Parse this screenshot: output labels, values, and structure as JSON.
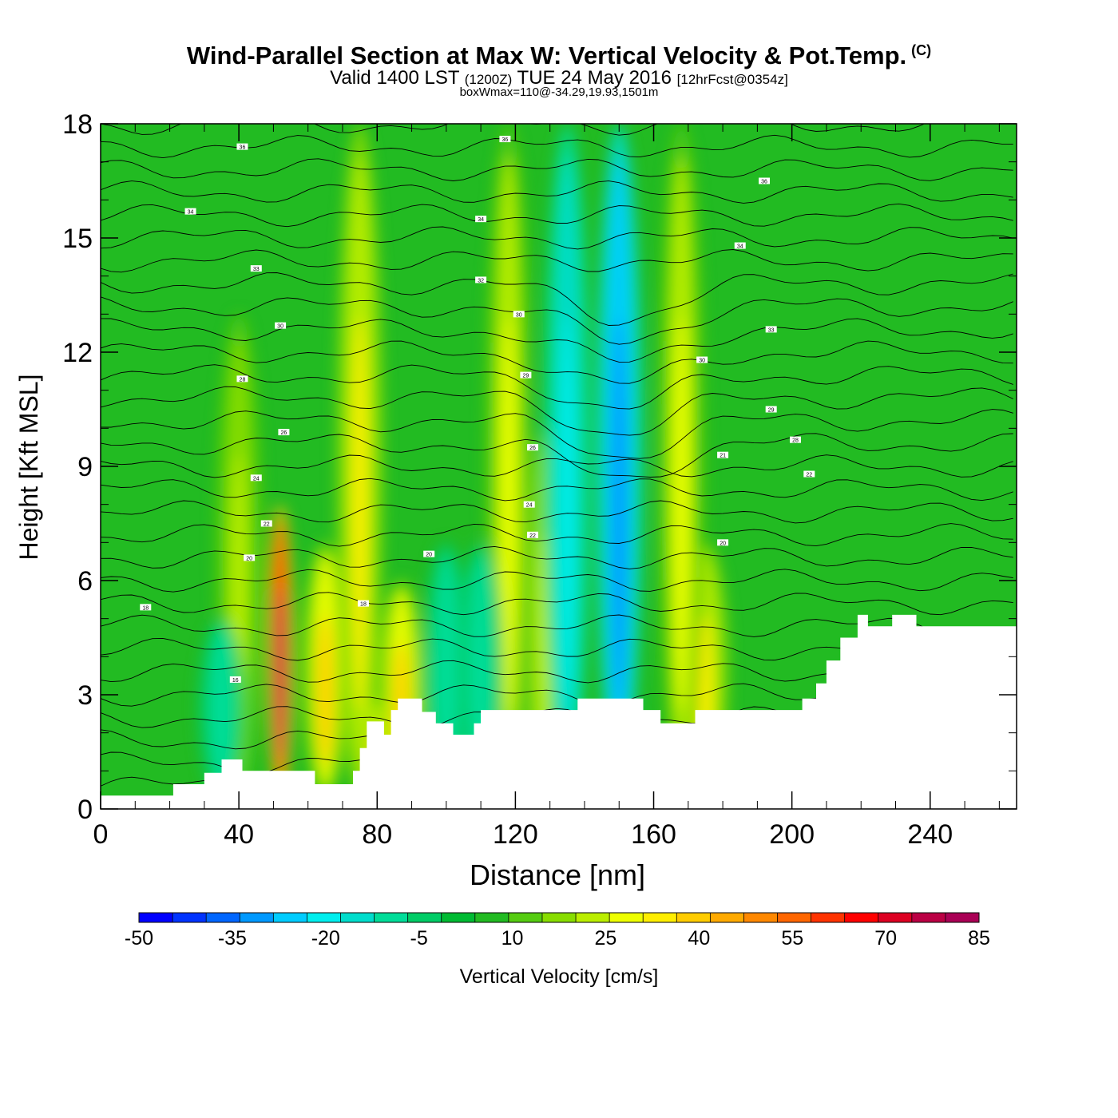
{
  "header": {
    "title": "Wind-Parallel Section at Max W: Vertical Velocity & Pot.Temp.",
    "copyright": "(C)",
    "valid_prefix": "Valid 1400 LST",
    "valid_utc": "(1200Z)",
    "valid_date": "TUE 24 May 2016",
    "forecast": "[12hrFcst@0354z]",
    "boxwmax": "boxWmax=110@-34.29,19.93,1501m"
  },
  "chart_data": {
    "type": "heatmap",
    "title": "Wind-Parallel Section at Max W: Vertical Velocity & Pot.Temp.",
    "xlabel": "Distance [nm]",
    "ylabel": "Height [Kft MSL]",
    "xlim": [
      0,
      265
    ],
    "ylim": [
      0,
      18
    ],
    "x_ticks": [
      "0",
      "40",
      "80",
      "120",
      "160",
      "200",
      "240"
    ],
    "y_ticks": [
      "0",
      "3",
      "6",
      "9",
      "12",
      "15",
      "18"
    ],
    "colorbar": {
      "label": "Vertical Velocity [cm/s]",
      "min": -50,
      "max": 85,
      "step": 5,
      "tick_labels": [
        "-50",
        "-35",
        "-20",
        "-5",
        "10",
        "25",
        "40",
        "55",
        "70",
        "85"
      ],
      "colors": [
        "#0000ff",
        "#0033ff",
        "#0066ff",
        "#0099ff",
        "#00ccff",
        "#00eeee",
        "#00ddcc",
        "#00dd99",
        "#00cc66",
        "#00bb33",
        "#22bb22",
        "#55cc11",
        "#88dd00",
        "#bbee00",
        "#eeff00",
        "#ffee00",
        "#ffcc00",
        "#ffaa00",
        "#ff8800",
        "#ff6600",
        "#ff3300",
        "#ff0000",
        "#dd0022",
        "#bb0044",
        "#aa0055"
      ]
    },
    "updraft_bands": [
      {
        "x": 52,
        "peak": 75,
        "top": 8
      },
      {
        "x": 65,
        "peak": 30,
        "top": 7
      },
      {
        "x": 78,
        "peak": 30,
        "top": 3
      },
      {
        "x": 87,
        "peak": 30,
        "top": 6
      },
      {
        "x": 118,
        "peak": 20,
        "top": 18
      },
      {
        "x": 128,
        "peak": 15,
        "top": 10
      },
      {
        "x": 175,
        "peak": 25,
        "top": 7
      },
      {
        "x": 75,
        "peak": 25,
        "top": 18
      },
      {
        "x": 168,
        "peak": 20,
        "top": 18
      },
      {
        "x": 40,
        "peak": 15,
        "top": 13
      }
    ],
    "downdraft_bands": [
      {
        "x": 135,
        "peak": -25,
        "top": 18
      },
      {
        "x": 150,
        "peak": -35,
        "top": 18
      },
      {
        "x": 100,
        "peak": -15,
        "top": 7
      },
      {
        "x": 110,
        "peak": -15,
        "top": 7
      },
      {
        "x": 35,
        "peak": -15,
        "top": 5
      }
    ],
    "theta_contour_labels": [
      {
        "x": 41,
        "y": 17.4,
        "text": "36"
      },
      {
        "x": 117,
        "y": 17.6,
        "text": "36"
      },
      {
        "x": 192,
        "y": 16.5,
        "text": "36"
      },
      {
        "x": 26,
        "y": 15.7,
        "text": "34"
      },
      {
        "x": 110,
        "y": 15.5,
        "text": "34"
      },
      {
        "x": 185,
        "y": 14.8,
        "text": "34"
      },
      {
        "x": 45,
        "y": 14.2,
        "text": "33"
      },
      {
        "x": 110,
        "y": 13.9,
        "text": "32"
      },
      {
        "x": 121,
        "y": 13.0,
        "text": "30"
      },
      {
        "x": 194,
        "y": 12.6,
        "text": "33"
      },
      {
        "x": 52,
        "y": 12.7,
        "text": "30"
      },
      {
        "x": 174,
        "y": 11.8,
        "text": "30"
      },
      {
        "x": 41,
        "y": 11.3,
        "text": "28"
      },
      {
        "x": 123,
        "y": 11.4,
        "text": "29"
      },
      {
        "x": 194,
        "y": 10.5,
        "text": "29"
      },
      {
        "x": 53,
        "y": 9.9,
        "text": "26"
      },
      {
        "x": 125,
        "y": 9.5,
        "text": "26"
      },
      {
        "x": 201,
        "y": 9.7,
        "text": "28"
      },
      {
        "x": 180,
        "y": 9.3,
        "text": "21"
      },
      {
        "x": 45,
        "y": 8.7,
        "text": "24"
      },
      {
        "x": 205,
        "y": 8.8,
        "text": "22"
      },
      {
        "x": 124,
        "y": 8.0,
        "text": "24"
      },
      {
        "x": 48,
        "y": 7.5,
        "text": "22"
      },
      {
        "x": 125,
        "y": 7.2,
        "text": "22"
      },
      {
        "x": 180,
        "y": 7.0,
        "text": "20"
      },
      {
        "x": 95,
        "y": 6.7,
        "text": "20"
      },
      {
        "x": 43,
        "y": 6.6,
        "text": "20"
      },
      {
        "x": 76,
        "y": 5.4,
        "text": "18"
      },
      {
        "x": 13,
        "y": 5.3,
        "text": "18"
      },
      {
        "x": 39,
        "y": 3.4,
        "text": "16"
      }
    ],
    "terrain_profile": {
      "x": [
        0,
        21,
        21,
        30,
        30,
        35,
        35,
        41,
        41,
        62,
        62,
        73,
        73,
        75,
        75,
        77,
        77,
        82,
        82,
        84,
        84,
        86,
        86,
        93,
        93,
        97,
        97,
        102,
        102,
        108,
        108,
        110,
        110,
        138,
        138,
        157,
        157,
        162,
        162,
        172,
        172,
        203,
        203,
        207,
        207,
        210,
        210,
        214,
        214,
        219,
        219,
        222,
        222,
        229,
        229,
        236,
        236,
        255,
        255,
        265
      ],
      "y": [
        0.35,
        0.35,
        0.65,
        0.65,
        0.95,
        0.95,
        1.3,
        1.3,
        1.0,
        1.0,
        0.65,
        0.65,
        1.0,
        1.0,
        1.6,
        1.6,
        2.3,
        2.3,
        1.95,
        1.95,
        2.6,
        2.6,
        2.9,
        2.9,
        2.55,
        2.55,
        2.25,
        2.25,
        1.95,
        1.95,
        2.25,
        2.25,
        2.6,
        2.6,
        2.9,
        2.9,
        2.6,
        2.6,
        2.25,
        2.25,
        2.6,
        2.6,
        2.9,
        2.9,
        3.3,
        3.3,
        3.9,
        3.9,
        4.5,
        4.5,
        5.1,
        5.1,
        4.8,
        4.8,
        5.1,
        5.1,
        4.8,
        4.8,
        4.8,
        4.8
      ]
    }
  }
}
